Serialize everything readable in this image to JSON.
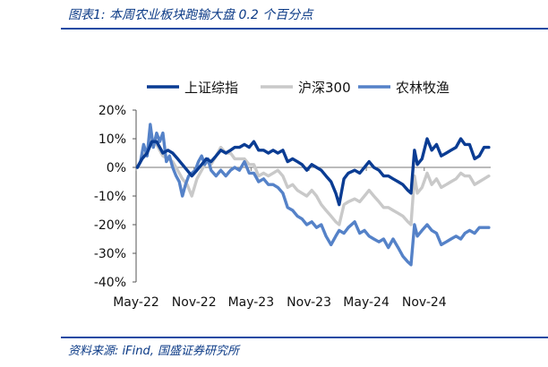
{
  "figure_title": "图表1:  本周农业板块跑输大盘 0.2 个百分点",
  "source": "资料来源:  iFind,  国盛证券研究所",
  "chart_data": {
    "type": "line",
    "x_ticks": [
      "May-22",
      "Nov-22",
      "May-23",
      "Nov-23",
      "May-24",
      "Nov-24"
    ],
    "x_range": [
      "2022-05-01",
      "2025-05-31"
    ],
    "y_ticks": [
      "20%",
      "10%",
      "0%",
      "-10%",
      "-20%",
      "-30%",
      "-40%"
    ],
    "ylim": [
      -40,
      20
    ],
    "grid": false,
    "legend_position": "top",
    "series": [
      {
        "name": "上证综指",
        "color": "#0a3c93",
        "points": [
          [
            "2022-05-05",
            0
          ],
          [
            "2022-05-20",
            3
          ],
          [
            "2022-06-05",
            5
          ],
          [
            "2022-06-20",
            9
          ],
          [
            "2022-07-05",
            9
          ],
          [
            "2022-07-25",
            5
          ],
          [
            "2022-08-10",
            6
          ],
          [
            "2022-08-25",
            5
          ],
          [
            "2022-09-10",
            3
          ],
          [
            "2022-09-25",
            1
          ],
          [
            "2022-10-10",
            -1
          ],
          [
            "2022-10-25",
            -3
          ],
          [
            "2022-11-10",
            -1
          ],
          [
            "2022-11-25",
            1
          ],
          [
            "2022-12-10",
            3
          ],
          [
            "2022-12-25",
            2
          ],
          [
            "2023-01-10",
            4
          ],
          [
            "2023-01-25",
            6
          ],
          [
            "2023-02-10",
            5
          ],
          [
            "2023-02-25",
            6
          ],
          [
            "2023-03-10",
            7
          ],
          [
            "2023-03-25",
            7
          ],
          [
            "2023-04-10",
            8
          ],
          [
            "2023-04-25",
            7
          ],
          [
            "2023-05-10",
            9
          ],
          [
            "2023-05-25",
            6
          ],
          [
            "2023-06-10",
            6
          ],
          [
            "2023-06-25",
            5
          ],
          [
            "2023-07-10",
            6
          ],
          [
            "2023-07-25",
            5
          ],
          [
            "2023-08-10",
            6
          ],
          [
            "2023-08-25",
            2
          ],
          [
            "2023-09-10",
            3
          ],
          [
            "2023-09-25",
            2
          ],
          [
            "2023-10-10",
            1
          ],
          [
            "2023-10-25",
            -1
          ],
          [
            "2023-11-10",
            1
          ],
          [
            "2023-11-25",
            0
          ],
          [
            "2023-12-10",
            -1
          ],
          [
            "2023-12-25",
            -3
          ],
          [
            "2024-01-10",
            -5
          ],
          [
            "2024-01-25",
            -9
          ],
          [
            "2024-02-05",
            -13
          ],
          [
            "2024-02-20",
            -4
          ],
          [
            "2024-03-05",
            -2
          ],
          [
            "2024-03-25",
            -1
          ],
          [
            "2024-04-10",
            -2
          ],
          [
            "2024-04-25",
            0
          ],
          [
            "2024-05-10",
            2
          ],
          [
            "2024-05-25",
            0
          ],
          [
            "2024-06-10",
            -1
          ],
          [
            "2024-06-25",
            -3
          ],
          [
            "2024-07-10",
            -3
          ],
          [
            "2024-07-25",
            -4
          ],
          [
            "2024-08-10",
            -5
          ],
          [
            "2024-08-25",
            -6
          ],
          [
            "2024-09-10",
            -8
          ],
          [
            "2024-09-20",
            -9
          ],
          [
            "2024-10-01",
            6
          ],
          [
            "2024-10-10",
            1
          ],
          [
            "2024-10-25",
            3
          ],
          [
            "2024-11-10",
            10
          ],
          [
            "2024-11-25",
            6
          ],
          [
            "2024-12-10",
            8
          ],
          [
            "2024-12-25",
            4
          ],
          [
            "2025-01-10",
            5
          ],
          [
            "2025-01-25",
            6
          ],
          [
            "2025-02-10",
            7
          ],
          [
            "2025-02-25",
            10
          ],
          [
            "2025-03-10",
            8
          ],
          [
            "2025-03-25",
            8
          ],
          [
            "2025-04-10",
            3
          ],
          [
            "2025-04-25",
            4
          ],
          [
            "2025-05-10",
            7
          ],
          [
            "2025-05-25",
            7
          ]
        ]
      },
      {
        "name": "沪深300",
        "color": "#c9c9c9",
        "points": [
          [
            "2022-05-05",
            0
          ],
          [
            "2022-05-20",
            3
          ],
          [
            "2022-06-05",
            6
          ],
          [
            "2022-06-20",
            10
          ],
          [
            "2022-07-05",
            8
          ],
          [
            "2022-07-25",
            4
          ],
          [
            "2022-08-10",
            3
          ],
          [
            "2022-08-25",
            2
          ],
          [
            "2022-09-10",
            -1
          ],
          [
            "2022-09-25",
            -4
          ],
          [
            "2022-10-10",
            -6
          ],
          [
            "2022-10-25",
            -10
          ],
          [
            "2022-11-10",
            -4
          ],
          [
            "2022-11-25",
            -1
          ],
          [
            "2022-12-10",
            2
          ],
          [
            "2022-12-25",
            1
          ],
          [
            "2023-01-10",
            4
          ],
          [
            "2023-01-25",
            7
          ],
          [
            "2023-02-10",
            5
          ],
          [
            "2023-02-25",
            5
          ],
          [
            "2023-03-10",
            3
          ],
          [
            "2023-03-25",
            3
          ],
          [
            "2023-04-10",
            3
          ],
          [
            "2023-04-25",
            1
          ],
          [
            "2023-05-10",
            1
          ],
          [
            "2023-05-25",
            -3
          ],
          [
            "2023-06-10",
            -2
          ],
          [
            "2023-06-25",
            -3
          ],
          [
            "2023-07-10",
            -2
          ],
          [
            "2023-07-25",
            -1
          ],
          [
            "2023-08-10",
            -3
          ],
          [
            "2023-08-25",
            -7
          ],
          [
            "2023-09-10",
            -6
          ],
          [
            "2023-09-25",
            -8
          ],
          [
            "2023-10-10",
            -9
          ],
          [
            "2023-10-25",
            -10
          ],
          [
            "2023-11-10",
            -8
          ],
          [
            "2023-11-25",
            -10
          ],
          [
            "2023-12-10",
            -13
          ],
          [
            "2023-12-25",
            -15
          ],
          [
            "2024-01-10",
            -17
          ],
          [
            "2024-01-25",
            -19
          ],
          [
            "2024-02-05",
            -20
          ],
          [
            "2024-02-20",
            -13
          ],
          [
            "2024-03-05",
            -12
          ],
          [
            "2024-03-25",
            -11
          ],
          [
            "2024-04-10",
            -12
          ],
          [
            "2024-04-25",
            -10
          ],
          [
            "2024-05-10",
            -8
          ],
          [
            "2024-05-25",
            -10
          ],
          [
            "2024-06-10",
            -12
          ],
          [
            "2024-06-25",
            -14
          ],
          [
            "2024-07-10",
            -14
          ],
          [
            "2024-07-25",
            -15
          ],
          [
            "2024-08-10",
            -16
          ],
          [
            "2024-08-25",
            -17
          ],
          [
            "2024-09-10",
            -19
          ],
          [
            "2024-09-20",
            -20
          ],
          [
            "2024-10-01",
            -3
          ],
          [
            "2024-10-10",
            -9
          ],
          [
            "2024-10-25",
            -7
          ],
          [
            "2024-11-10",
            -2
          ],
          [
            "2024-11-25",
            -6
          ],
          [
            "2024-12-10",
            -4
          ],
          [
            "2024-12-25",
            -7
          ],
          [
            "2025-01-10",
            -6
          ],
          [
            "2025-01-25",
            -5
          ],
          [
            "2025-02-10",
            -4
          ],
          [
            "2025-02-25",
            -2
          ],
          [
            "2025-03-10",
            -3
          ],
          [
            "2025-03-25",
            -3
          ],
          [
            "2025-04-10",
            -6
          ],
          [
            "2025-04-25",
            -5
          ],
          [
            "2025-05-10",
            -4
          ],
          [
            "2025-05-25",
            -3
          ]
        ]
      },
      {
        "name": "农林牧渔",
        "color": "#5582c8",
        "points": [
          [
            "2022-05-05",
            0
          ],
          [
            "2022-05-15",
            2
          ],
          [
            "2022-05-25",
            8
          ],
          [
            "2022-06-05",
            4
          ],
          [
            "2022-06-15",
            15
          ],
          [
            "2022-06-25",
            7
          ],
          [
            "2022-07-05",
            12
          ],
          [
            "2022-07-15",
            9
          ],
          [
            "2022-07-25",
            12
          ],
          [
            "2022-08-05",
            2
          ],
          [
            "2022-08-15",
            4
          ],
          [
            "2022-08-25",
            0
          ],
          [
            "2022-09-05",
            -3
          ],
          [
            "2022-09-15",
            -5
          ],
          [
            "2022-09-25",
            -10
          ],
          [
            "2022-10-05",
            -6
          ],
          [
            "2022-10-15",
            -3
          ],
          [
            "2022-10-25",
            -2
          ],
          [
            "2022-11-05",
            -1
          ],
          [
            "2022-11-15",
            2
          ],
          [
            "2022-11-25",
            4
          ],
          [
            "2022-12-05",
            1
          ],
          [
            "2022-12-15",
            3
          ],
          [
            "2022-12-25",
            -1
          ],
          [
            "2023-01-10",
            -3
          ],
          [
            "2023-01-25",
            -1
          ],
          [
            "2023-02-10",
            -3
          ],
          [
            "2023-02-25",
            -1
          ],
          [
            "2023-03-10",
            0
          ],
          [
            "2023-03-25",
            -1
          ],
          [
            "2023-04-10",
            2
          ],
          [
            "2023-04-25",
            -2
          ],
          [
            "2023-05-10",
            -2
          ],
          [
            "2023-05-25",
            -5
          ],
          [
            "2023-06-10",
            -4
          ],
          [
            "2023-06-25",
            -6
          ],
          [
            "2023-07-10",
            -6
          ],
          [
            "2023-07-25",
            -7
          ],
          [
            "2023-08-10",
            -9
          ],
          [
            "2023-08-25",
            -14
          ],
          [
            "2023-09-10",
            -15
          ],
          [
            "2023-09-25",
            -17
          ],
          [
            "2023-10-10",
            -18
          ],
          [
            "2023-10-25",
            -20
          ],
          [
            "2023-11-10",
            -19
          ],
          [
            "2023-11-25",
            -21
          ],
          [
            "2023-12-10",
            -20
          ],
          [
            "2023-12-25",
            -24
          ],
          [
            "2024-01-10",
            -27
          ],
          [
            "2024-01-25",
            -24
          ],
          [
            "2024-02-05",
            -22
          ],
          [
            "2024-02-20",
            -23
          ],
          [
            "2024-03-05",
            -21
          ],
          [
            "2024-03-25",
            -19
          ],
          [
            "2024-04-10",
            -23
          ],
          [
            "2024-04-25",
            -22
          ],
          [
            "2024-05-10",
            -24
          ],
          [
            "2024-05-25",
            -25
          ],
          [
            "2024-06-10",
            -26
          ],
          [
            "2024-06-25",
            -25
          ],
          [
            "2024-07-10",
            -28
          ],
          [
            "2024-07-25",
            -25
          ],
          [
            "2024-08-10",
            -28
          ],
          [
            "2024-08-25",
            -31
          ],
          [
            "2024-09-10",
            -33
          ],
          [
            "2024-09-20",
            -34
          ],
          [
            "2024-10-01",
            -20
          ],
          [
            "2024-10-10",
            -24
          ],
          [
            "2024-10-25",
            -22
          ],
          [
            "2024-11-10",
            -20
          ],
          [
            "2024-11-25",
            -22
          ],
          [
            "2024-12-10",
            -23
          ],
          [
            "2024-12-25",
            -27
          ],
          [
            "2025-01-10",
            -26
          ],
          [
            "2025-01-25",
            -25
          ],
          [
            "2025-02-10",
            -24
          ],
          [
            "2025-02-25",
            -25
          ],
          [
            "2025-03-10",
            -23
          ],
          [
            "2025-03-25",
            -22
          ],
          [
            "2025-04-10",
            -23
          ],
          [
            "2025-04-25",
            -21
          ],
          [
            "2025-05-10",
            -21
          ],
          [
            "2025-05-25",
            -21
          ]
        ]
      }
    ]
  }
}
